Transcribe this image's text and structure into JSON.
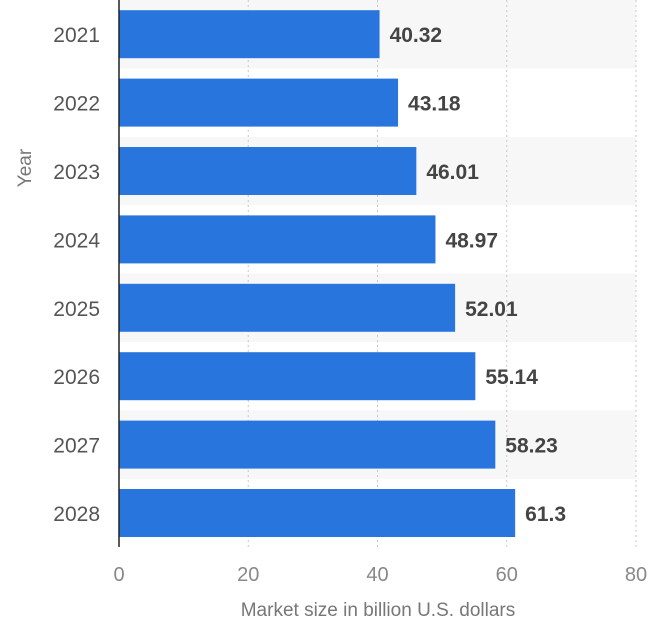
{
  "colors": {
    "bar": "#2876dd",
    "band": "#f7f7f7",
    "grid": "#c8c8c8",
    "axis": "#222222"
  },
  "chart_data": {
    "type": "bar",
    "orientation": "horizontal",
    "categories": [
      "2021",
      "2022",
      "2023",
      "2024",
      "2025",
      "2026",
      "2027",
      "2028"
    ],
    "values": [
      40.32,
      43.18,
      46.01,
      48.97,
      52.01,
      55.14,
      58.23,
      61.3
    ],
    "value_labels": [
      "40.32",
      "43.18",
      "46.01",
      "48.97",
      "52.01",
      "55.14",
      "58.23",
      "61.3"
    ],
    "xlabel": "Market size in billion U.S. dollars",
    "ylabel": "Year",
    "xlim": [
      0,
      80
    ],
    "xticks": [
      0,
      20,
      40,
      60,
      80
    ],
    "xtick_labels": [
      "0",
      "20",
      "40",
      "60",
      "80"
    ],
    "grid": "vertical dotted",
    "legend": "none"
  }
}
